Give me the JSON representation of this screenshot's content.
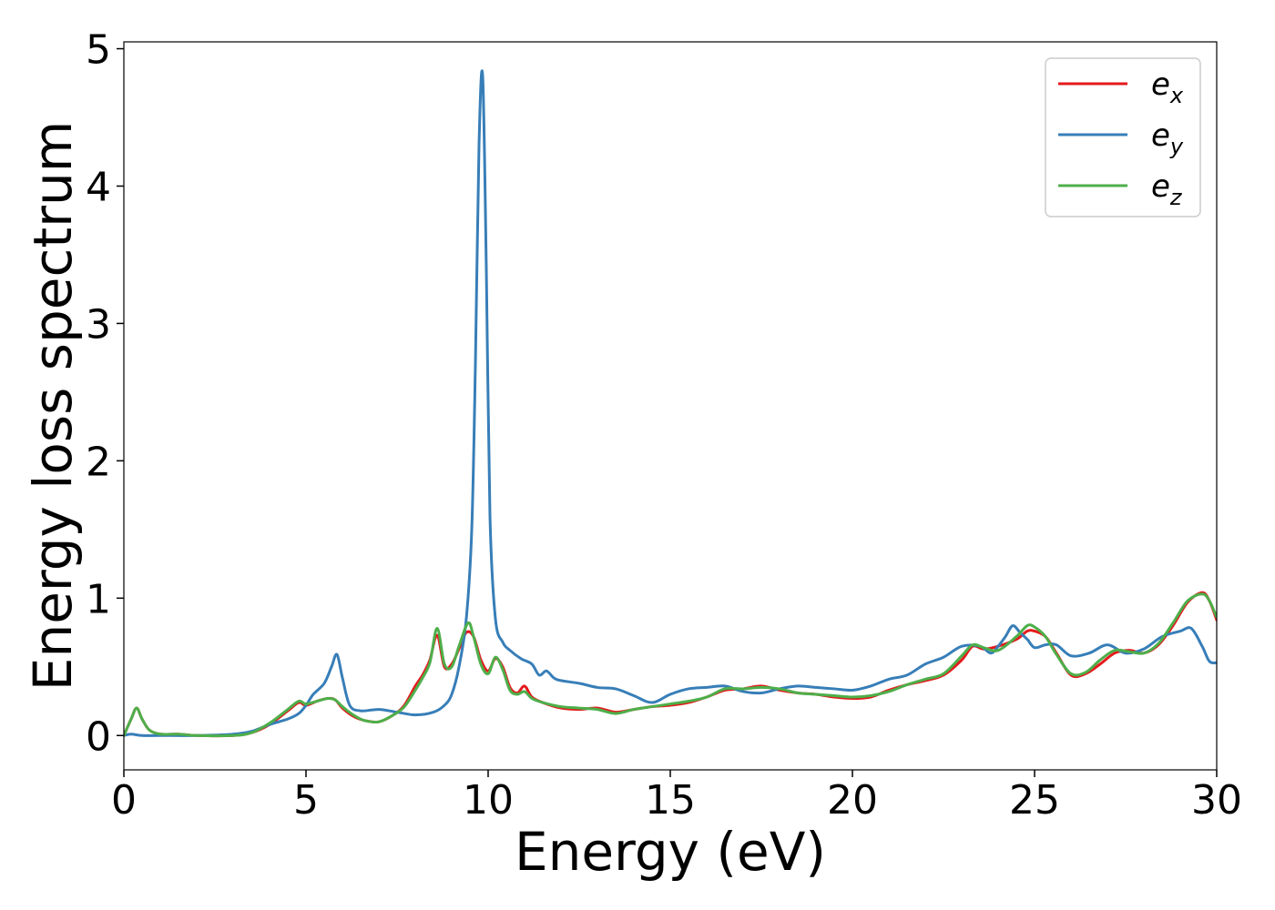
{
  "chart_data": {
    "type": "line",
    "title": "",
    "xlabel": "Energy (eV)",
    "ylabel": "Energy loss spectrum",
    "xlim": [
      0,
      30
    ],
    "ylim": [
      -0.25,
      5.05
    ],
    "xticks": [
      "0",
      "5",
      "10",
      "15",
      "20",
      "25",
      "30"
    ],
    "yticks": [
      "0",
      "1",
      "2",
      "3",
      "4",
      "5"
    ],
    "grid": false,
    "legend_position": "top-right",
    "series": [
      {
        "name": "e_x",
        "label_base": "e",
        "label_sub": "x",
        "color": "#e41a1c",
        "x": [
          0,
          0.2,
          0.35,
          0.5,
          0.7,
          1.0,
          1.5,
          2.0,
          3.0,
          3.5,
          4.0,
          4.5,
          4.8,
          5.0,
          5.3,
          5.6,
          5.8,
          6.0,
          6.3,
          6.6,
          7.0,
          7.4,
          7.7,
          8.0,
          8.2,
          8.4,
          8.6,
          8.8,
          9.0,
          9.2,
          9.4,
          9.6,
          9.8,
          10.0,
          10.2,
          10.4,
          10.6,
          10.8,
          11.0,
          11.2,
          11.5,
          12.0,
          12.5,
          13.0,
          13.5,
          14.0,
          14.5,
          15.0,
          15.5,
          16.0,
          16.5,
          17.0,
          17.5,
          18.0,
          18.5,
          19.0,
          19.5,
          20.0,
          20.5,
          21.0,
          21.5,
          22.0,
          22.5,
          23.0,
          23.3,
          23.6,
          24.0,
          24.5,
          24.8,
          25.0,
          25.3,
          25.6,
          26.0,
          26.4,
          26.8,
          27.2,
          27.6,
          28.0,
          28.4,
          28.8,
          29.2,
          29.6,
          29.8,
          30.0
        ],
        "y": [
          0.0,
          0.12,
          0.2,
          0.12,
          0.04,
          0.01,
          0.01,
          0.0,
          0.0,
          0.02,
          0.08,
          0.18,
          0.24,
          0.22,
          0.25,
          0.27,
          0.26,
          0.2,
          0.14,
          0.11,
          0.1,
          0.15,
          0.22,
          0.36,
          0.44,
          0.55,
          0.73,
          0.5,
          0.52,
          0.63,
          0.75,
          0.72,
          0.55,
          0.47,
          0.56,
          0.5,
          0.35,
          0.31,
          0.36,
          0.28,
          0.24,
          0.2,
          0.19,
          0.2,
          0.17,
          0.19,
          0.21,
          0.22,
          0.24,
          0.28,
          0.33,
          0.34,
          0.36,
          0.33,
          0.31,
          0.3,
          0.28,
          0.27,
          0.28,
          0.33,
          0.37,
          0.4,
          0.44,
          0.55,
          0.65,
          0.63,
          0.65,
          0.7,
          0.76,
          0.76,
          0.72,
          0.6,
          0.44,
          0.45,
          0.52,
          0.6,
          0.62,
          0.6,
          0.66,
          0.8,
          0.97,
          1.04,
          0.98,
          0.84
        ]
      },
      {
        "name": "e_y",
        "label_base": "e",
        "label_sub": "y",
        "color": "#377eb8",
        "x": [
          0,
          0.2,
          0.5,
          1.0,
          2.0,
          3.0,
          3.5,
          4.0,
          4.5,
          4.8,
          5.0,
          5.2,
          5.5,
          5.7,
          5.85,
          6.0,
          6.2,
          6.5,
          7.0,
          7.5,
          8.0,
          8.5,
          8.8,
          9.0,
          9.2,
          9.4,
          9.55,
          9.65,
          9.75,
          9.85,
          9.95,
          10.05,
          10.2,
          10.4,
          10.6,
          10.9,
          11.2,
          11.4,
          11.6,
          11.8,
          12.0,
          12.5,
          13.0,
          13.5,
          14.0,
          14.5,
          15.0,
          15.5,
          16.0,
          16.5,
          17.0,
          17.5,
          18.0,
          18.5,
          19.0,
          19.5,
          20.0,
          20.5,
          21.0,
          21.5,
          22.0,
          22.5,
          23.0,
          23.5,
          23.8,
          24.0,
          24.2,
          24.4,
          24.6,
          24.8,
          25.0,
          25.3,
          25.6,
          26.0,
          26.5,
          27.0,
          27.5,
          28.0,
          28.5,
          29.0,
          29.3,
          29.6,
          29.8,
          30.0
        ],
        "y": [
          0.0,
          0.01,
          0.0,
          0.0,
          0.0,
          0.01,
          0.03,
          0.08,
          0.12,
          0.16,
          0.22,
          0.3,
          0.38,
          0.5,
          0.59,
          0.42,
          0.22,
          0.18,
          0.19,
          0.17,
          0.15,
          0.17,
          0.22,
          0.3,
          0.5,
          0.85,
          1.5,
          2.7,
          4.3,
          4.8,
          3.4,
          1.6,
          0.85,
          0.68,
          0.62,
          0.56,
          0.52,
          0.44,
          0.47,
          0.42,
          0.4,
          0.38,
          0.35,
          0.34,
          0.29,
          0.24,
          0.3,
          0.34,
          0.35,
          0.36,
          0.32,
          0.31,
          0.34,
          0.36,
          0.35,
          0.34,
          0.33,
          0.36,
          0.41,
          0.44,
          0.52,
          0.57,
          0.65,
          0.65,
          0.6,
          0.65,
          0.72,
          0.8,
          0.75,
          0.7,
          0.64,
          0.66,
          0.66,
          0.58,
          0.6,
          0.66,
          0.6,
          0.63,
          0.72,
          0.76,
          0.78,
          0.65,
          0.54,
          0.53
        ]
      },
      {
        "name": "e_z",
        "label_base": "e",
        "label_sub": "z",
        "color": "#4daf4a",
        "x": [
          0,
          0.2,
          0.35,
          0.5,
          0.7,
          1.0,
          1.5,
          2.0,
          3.0,
          3.5,
          4.0,
          4.5,
          4.8,
          5.0,
          5.3,
          5.6,
          5.8,
          6.0,
          6.3,
          6.6,
          7.0,
          7.4,
          7.7,
          8.0,
          8.2,
          8.4,
          8.6,
          8.8,
          9.0,
          9.2,
          9.45,
          9.6,
          9.8,
          10.0,
          10.2,
          10.4,
          10.6,
          10.8,
          11.0,
          11.2,
          11.5,
          12.0,
          12.5,
          13.0,
          13.5,
          14.0,
          14.5,
          15.0,
          15.5,
          16.0,
          16.5,
          17.0,
          17.5,
          18.0,
          18.5,
          19.0,
          19.5,
          20.0,
          20.5,
          21.0,
          21.5,
          22.0,
          22.5,
          23.0,
          23.3,
          23.6,
          24.0,
          24.5,
          24.8,
          25.0,
          25.3,
          25.6,
          26.0,
          26.4,
          26.8,
          27.2,
          27.6,
          28.0,
          28.4,
          28.8,
          29.2,
          29.6,
          29.8,
          30.0
        ],
        "y": [
          0.0,
          0.12,
          0.2,
          0.12,
          0.04,
          0.01,
          0.01,
          0.0,
          0.0,
          0.02,
          0.09,
          0.19,
          0.25,
          0.23,
          0.25,
          0.27,
          0.26,
          0.21,
          0.15,
          0.11,
          0.1,
          0.15,
          0.21,
          0.33,
          0.42,
          0.53,
          0.78,
          0.52,
          0.5,
          0.65,
          0.82,
          0.72,
          0.52,
          0.45,
          0.57,
          0.48,
          0.33,
          0.3,
          0.32,
          0.27,
          0.24,
          0.21,
          0.2,
          0.19,
          0.16,
          0.19,
          0.21,
          0.23,
          0.25,
          0.28,
          0.34,
          0.34,
          0.35,
          0.34,
          0.31,
          0.3,
          0.29,
          0.28,
          0.29,
          0.32,
          0.37,
          0.41,
          0.45,
          0.58,
          0.66,
          0.64,
          0.62,
          0.72,
          0.8,
          0.79,
          0.72,
          0.59,
          0.45,
          0.46,
          0.55,
          0.62,
          0.61,
          0.6,
          0.67,
          0.82,
          0.98,
          1.03,
          0.98,
          0.86
        ]
      }
    ]
  }
}
